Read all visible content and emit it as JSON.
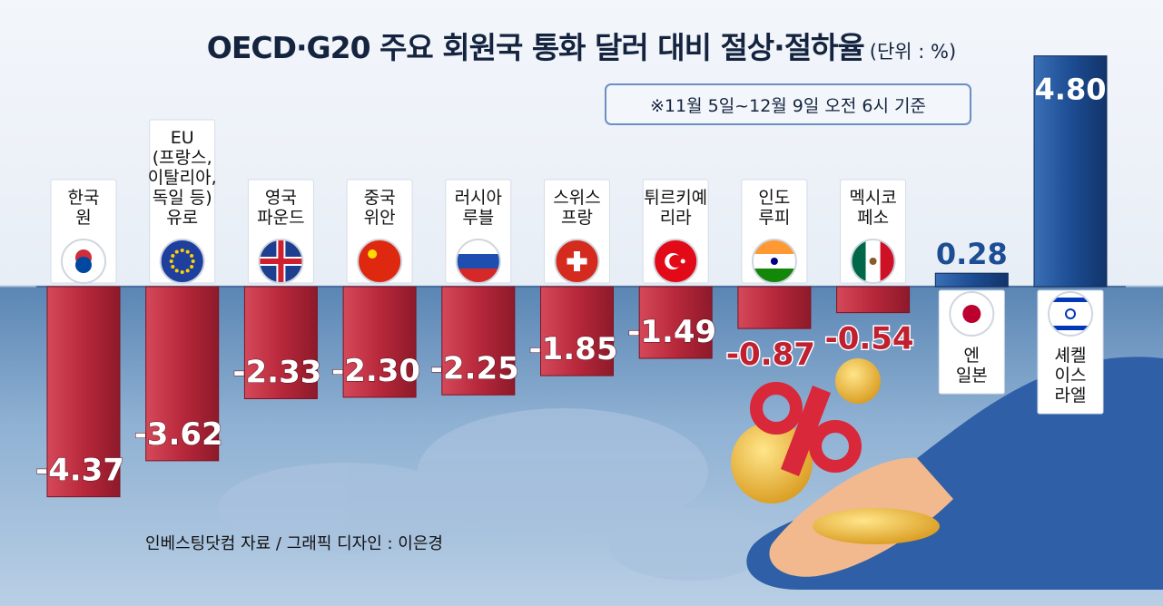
{
  "header": {
    "title": "OECD·G20 주요 회원국 통화 달러 대비 절상·절하율",
    "unit": "(단위 : %)"
  },
  "note": "※11월 5일~12월 9일 오전 6시 기준",
  "source": "인베스팅닷컴 자료 / 그래픽 디자인 : 이은경",
  "chart_data": {
    "type": "bar",
    "title": "OECD·G20 주요 회원국 통화 달러 대비 절상·절하율",
    "unit": "%",
    "baseline": 0,
    "categories": [
      "한국 원",
      "EU (프랑스, 이탈리아, 독일 등) 유로",
      "영국 파운드",
      "중국 위안",
      "러시아 루블",
      "스위스 프랑",
      "튀르키예 리라",
      "인도 루피",
      "멕시코 페소",
      "엔 일본",
      "셰켈 이스라엘"
    ],
    "values": [
      -4.37,
      -3.62,
      -2.33,
      -2.3,
      -2.25,
      -1.85,
      -1.49,
      -0.87,
      -0.54,
      0.28,
      4.8
    ],
    "data_labels": [
      "-4.37",
      "-3.62",
      "-2.33",
      "-2.30",
      "-2.25",
      "-1.85",
      "-1.49",
      "-0.87",
      "-0.54",
      "0.28",
      "4.80"
    ],
    "label_lines": [
      [
        "한국",
        "원"
      ],
      [
        "EU",
        "(프랑스,",
        "이탈리아,",
        "독일 등)",
        "유로"
      ],
      [
        "영국",
        "파운드"
      ],
      [
        "중국",
        "위안"
      ],
      [
        "러시아",
        "루블"
      ],
      [
        "스위스",
        "프랑"
      ],
      [
        "튀르키예",
        "리라"
      ],
      [
        "인도",
        "루피"
      ],
      [
        "멕시코",
        "페소"
      ],
      [
        "엔",
        "일본"
      ],
      [
        "셰켈",
        "이스",
        "라엘"
      ]
    ],
    "flag_icons": [
      "korea-flag-icon",
      "eu-flag-icon",
      "uk-flag-icon",
      "china-flag-icon",
      "russia-flag-icon",
      "switzerland-flag-icon",
      "turkey-flag-icon",
      "india-flag-icon",
      "mexico-flag-icon",
      "japan-flag-icon",
      "israel-flag-icon"
    ],
    "colors": {
      "negative": "#b8283b",
      "positive": "#1d4d93",
      "negative_label": "#c0202f",
      "positive_label": "#1d4d93"
    }
  }
}
